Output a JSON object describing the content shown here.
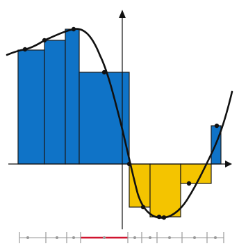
{
  "colors": {
    "background": "#ffffff",
    "positive_fill": "#0f73c7",
    "negative_fill": "#f4c400",
    "rect_stroke": "#1b1b1b",
    "curve": "#111111",
    "points": "#111111",
    "axes": "#111111",
    "partition_line": "#b8b8b8",
    "partition_tick": "#9a9a9a",
    "highlight_segment": "#d0142f"
  },
  "diagram": {
    "type": "riemann-sum-tagged-partition",
    "positive_rectangles": 5,
    "negative_rectangles": 3,
    "sample_points": 10,
    "partition_ticks": 10,
    "highlighted_subinterval": 4
  }
}
